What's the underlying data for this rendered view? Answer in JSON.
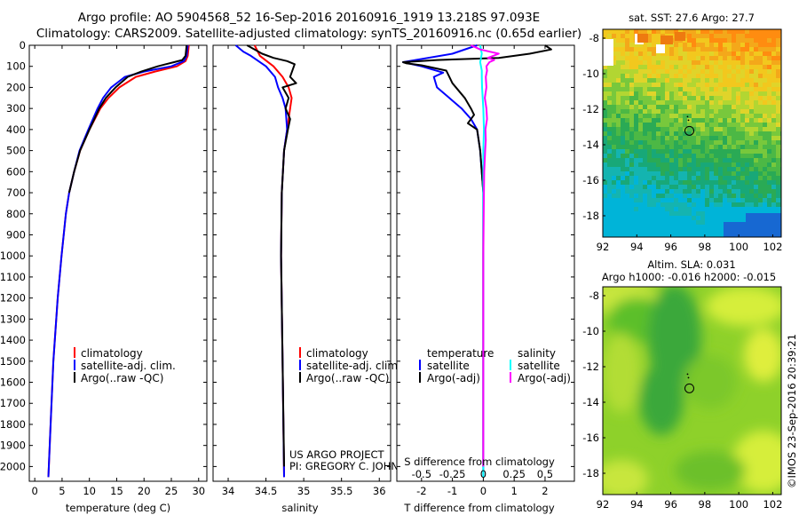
{
  "header": {
    "line1": "Argo profile: AO 5904568_52 16-Sep-2016 20160916_1919 13.218S 97.093E",
    "line2": "Climatology: CARS2009. Satellite-adjusted climatology: synTS_20160916.nc (0.65d earlier)"
  },
  "colors": {
    "climatology": "#ff0000",
    "satellite": "#0000ff",
    "argo": "#000000",
    "cyan": "#00ffff",
    "magenta": "#ff00ff"
  },
  "depth_axis": {
    "ticks": [
      0,
      100,
      200,
      300,
      400,
      500,
      600,
      700,
      800,
      900,
      1000,
      1100,
      1200,
      1300,
      1400,
      1500,
      1600,
      1700,
      1800,
      1900,
      2000
    ]
  },
  "chart_data": [
    {
      "type": "line",
      "name": "temperature",
      "xlabel": "temperature (deg C)",
      "xlim": [
        -1,
        31.5
      ],
      "ylim": [
        0,
        2070
      ],
      "xticks": [
        0,
        5,
        10,
        15,
        20,
        25,
        30
      ],
      "legend": [
        "climatology",
        "satellite-adj. clim.",
        "Argo(..raw -QC)"
      ],
      "series": [
        {
          "name": "climatology",
          "color": "#ff0000",
          "depth": [
            0,
            50,
            75,
            100,
            125,
            150,
            200,
            250,
            300,
            400,
            500,
            600,
            700,
            800,
            1000,
            1200,
            1500,
            1800,
            2050
          ],
          "value": [
            28.2,
            28.0,
            27.6,
            26,
            22,
            18.5,
            15.5,
            13.5,
            12,
            10,
            8.3,
            7.2,
            6.3,
            5.7,
            4.9,
            4.2,
            3.4,
            2.9,
            2.5
          ]
        },
        {
          "name": "satellite-adj. clim.",
          "color": "#0000ff",
          "depth": [
            0,
            50,
            75,
            100,
            125,
            150,
            200,
            250,
            300,
            400,
            500,
            600,
            700,
            800,
            1000,
            1200,
            1500,
            1800,
            2050
          ],
          "value": [
            28.0,
            27.8,
            27.3,
            25,
            20,
            16.5,
            14,
            12.5,
            11.5,
            9.8,
            8.2,
            7.2,
            6.3,
            5.7,
            4.9,
            4.2,
            3.4,
            2.9,
            2.5
          ]
        },
        {
          "name": "Argo(..raw -QC)",
          "color": "#000000",
          "depth": [
            0,
            50,
            70,
            80,
            90,
            100,
            125,
            150,
            200,
            250,
            300,
            400,
            500,
            600,
            700
          ],
          "value": [
            27.8,
            27.6,
            27.0,
            25.5,
            24,
            22.5,
            19.5,
            17,
            14.8,
            13,
            11.8,
            10,
            8.3,
            7.2,
            6.3
          ]
        }
      ]
    },
    {
      "type": "line",
      "name": "salinity",
      "xlabel": "salinity",
      "xlim": [
        33.8,
        36.15
      ],
      "ylim": [
        0,
        2070
      ],
      "xticks": [
        34,
        34.5,
        35,
        35.5,
        36
      ],
      "legend": [
        "climatology",
        "satellite-adj. clim.",
        "Argo(..raw -QC)"
      ],
      "series": [
        {
          "name": "climatology",
          "color": "#ff0000",
          "depth": [
            0,
            50,
            100,
            150,
            200,
            250,
            300,
            400,
            500,
            700,
            1000,
            1500,
            2050
          ],
          "value": [
            34.35,
            34.42,
            34.6,
            34.72,
            34.8,
            34.84,
            34.82,
            34.78,
            34.74,
            34.71,
            34.7,
            34.72,
            34.74
          ]
        },
        {
          "name": "satellite-adj. clim.",
          "color": "#0000ff",
          "depth": [
            0,
            30,
            50,
            100,
            150,
            200,
            250,
            300,
            400,
            500,
            700,
            1000,
            1500,
            2050
          ],
          "value": [
            34.1,
            34.2,
            34.3,
            34.5,
            34.62,
            34.66,
            34.72,
            34.76,
            34.78,
            34.74,
            34.71,
            34.7,
            34.72,
            34.74
          ]
        },
        {
          "name": "Argo(..raw -QC)",
          "color": "#000000",
          "depth": [
            0,
            40,
            60,
            75,
            90,
            110,
            150,
            180,
            200,
            250,
            300,
            350,
            400,
            500,
            700,
            1000,
            1500,
            2000
          ],
          "value": [
            34.25,
            34.45,
            34.6,
            34.78,
            34.88,
            34.86,
            34.82,
            34.9,
            34.72,
            34.8,
            34.76,
            34.82,
            34.79,
            34.74,
            34.71,
            34.7,
            34.72,
            34.74
          ]
        }
      ]
    },
    {
      "type": "line",
      "name": "difference",
      "xlabel": "T difference from climatology",
      "xlabel_top": "S difference from climatology",
      "xlim": [
        -2.8,
        2.95
      ],
      "ylim": [
        0,
        2070
      ],
      "xticks": [
        -2,
        -1,
        0,
        1,
        2
      ],
      "xticks_top": [
        "-0.5",
        "-0.25",
        "0",
        "0.25",
        "0.5"
      ],
      "legend_headers": [
        "temperature",
        "salinity"
      ],
      "legend": [
        "satellite",
        "Argo(-adj)",
        "satellite",
        "Argo(-adj)"
      ],
      "series": [
        {
          "name": "T satellite",
          "color": "#0000ff",
          "depth": [
            0,
            40,
            80,
            100,
            130,
            150,
            200,
            250,
            300,
            350,
            400,
            500,
            700,
            1000,
            1500,
            2050
          ],
          "value": [
            -0.2,
            -1.0,
            -2.6,
            -2.0,
            -1.3,
            -1.6,
            -1.5,
            -1.1,
            -0.7,
            -0.4,
            -0.2,
            -0.1,
            0,
            0,
            0,
            0
          ]
        },
        {
          "name": "T Argo(-adj)",
          "color": "#000000",
          "depth": [
            0,
            20,
            40,
            60,
            70,
            80,
            85,
            95,
            120,
            180,
            250,
            300,
            330,
            370,
            400,
            500,
            700,
            1000,
            1500,
            2000
          ],
          "value": [
            2.0,
            2.2,
            1.5,
            0.5,
            -1.5,
            -2.6,
            -2.5,
            -2.0,
            -1.2,
            -1.0,
            -0.6,
            -0.4,
            -0.3,
            -0.5,
            -0.2,
            -0.1,
            0,
            0,
            0,
            0
          ]
        },
        {
          "name": "S satellite",
          "color": "#00ffff",
          "depth": [
            0,
            40,
            80,
            120,
            150,
            200,
            250,
            300,
            400,
            500,
            700,
            1000,
            1500,
            2050
          ],
          "value": [
            -0.1,
            -0.05,
            -0.1,
            -0.05,
            -0.05,
            -0.04,
            -0.02,
            0,
            0.02,
            0,
            0,
            0,
            0,
            0
          ]
        },
        {
          "name": "S Argo(-adj)",
          "color": "#ff00ff",
          "depth": [
            0,
            20,
            40,
            60,
            70,
            80,
            100,
            120,
            150,
            200,
            250,
            300,
            350,
            400,
            450,
            500,
            600,
            700,
            1000,
            1500,
            2000
          ],
          "value": [
            -0.4,
            -0.1,
            0.5,
            0.15,
            0.35,
            0.2,
            0.1,
            0.12,
            0.08,
            0.1,
            0.05,
            0.1,
            0.12,
            0.07,
            0.08,
            0.06,
            0.03,
            0.02,
            0,
            0,
            0
          ]
        }
      ]
    },
    {
      "type": "heatmap",
      "name": "sst-map",
      "title": "sat. SST: 27.6 Argo: 27.7",
      "xlim": [
        92,
        102.5
      ],
      "ylim": [
        -19.2,
        -7.5
      ],
      "xticks": [
        92,
        94,
        96,
        98,
        100,
        102
      ],
      "yticks": [
        -8,
        -10,
        -12,
        -14,
        -16,
        -18
      ],
      "marker": {
        "lon": 97.093,
        "lat": -13.218
      }
    },
    {
      "type": "heatmap",
      "name": "sla-map",
      "title": "Altim. SLA: 0.031",
      "subtitle": "Argo h1000: -0.016 h2000: -0.015",
      "xlim": [
        92,
        102.5
      ],
      "ylim": [
        -19.2,
        -7.5
      ],
      "xticks": [
        92,
        94,
        96,
        98,
        100,
        102
      ],
      "yticks": [
        -8,
        -10,
        -12,
        -14,
        -16,
        -18
      ],
      "marker": {
        "lon": 97.093,
        "lat": -13.218
      }
    }
  ],
  "annotations": {
    "project1": "US ARGO PROJECT",
    "project2": "PI: GREGORY C. JOHNSON",
    "credit": "©IMOS 23-Sep-2016 20:39:21"
  }
}
